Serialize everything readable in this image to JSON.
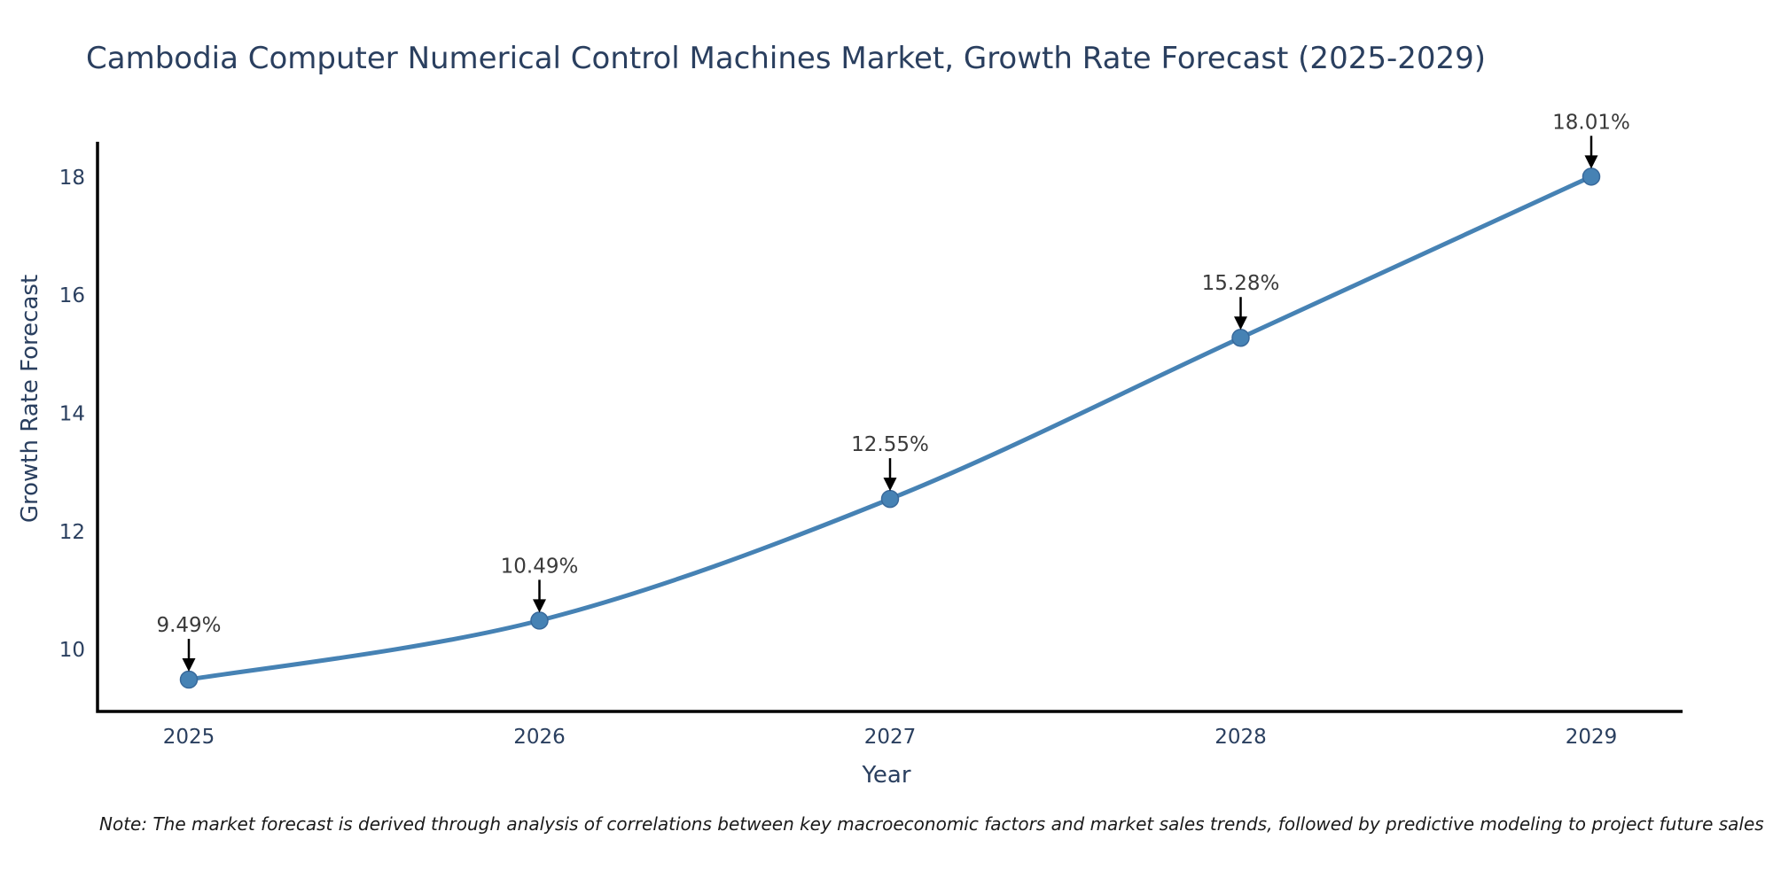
{
  "title": "Cambodia Computer Numerical Control Machines Market, Growth Rate Forecast (2025-2029)",
  "note": "Note: The market forecast is derived through analysis of correlations between key macroeconomic factors and market sales trends, followed by predictive modeling to project future sales",
  "chart_data": {
    "type": "line",
    "title": "Cambodia Computer Numerical Control Machines Market, Growth Rate Forecast (2025-2029)",
    "xlabel": "Year",
    "ylabel": "Growth Rate Forecast",
    "x": [
      2025,
      2026,
      2027,
      2028,
      2029
    ],
    "series": [
      {
        "name": "Growth Rate Forecast",
        "values": [
          9.49,
          10.49,
          12.55,
          15.28,
          18.01
        ]
      }
    ],
    "point_labels": [
      "9.49%",
      "10.49%",
      "12.55%",
      "15.28%",
      "18.01%"
    ],
    "yticks": [
      10,
      12,
      14,
      16,
      18
    ],
    "ylim": [
      8.95,
      18.6
    ],
    "grid": false,
    "legend_position": "none",
    "annotation_style": "value-label-with-down-arrow",
    "colors": {
      "line": "#4682b4",
      "marker_fill": "#4682b4",
      "marker_edge": "#38699b",
      "arrow": "#000000",
      "annotation_text": "#3a3a3a",
      "tick_text": "#2a3f5f",
      "axis_title_text": "#2a3f5f",
      "spine": "#000000",
      "title_text": "#2a3f5f",
      "note_text": "#1a1a1a"
    }
  }
}
